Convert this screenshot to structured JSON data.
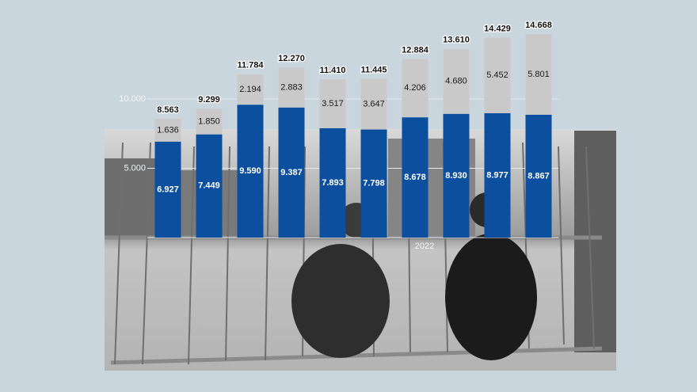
{
  "chart_data": {
    "type": "stacked_bar",
    "categories": [
      null,
      null,
      null,
      null,
      null,
      null,
      null,
      null,
      null,
      null
    ],
    "series": [
      {
        "color": "#0b4f9e",
        "values": [
          6927,
          7449,
          9590,
          9387,
          7893,
          7798,
          8678,
          8930,
          8977,
          8867
        ],
        "value_labels": [
          "6.927",
          "7.449",
          "9.590",
          "9.387",
          "7.893",
          "7.798",
          "8.678",
          "8.930",
          "8.977",
          "8.867"
        ]
      },
      {
        "color": "#c9c9c9",
        "values": [
          1636,
          1850,
          2194,
          2883,
          3517,
          3647,
          4206,
          4680,
          5452,
          5801
        ],
        "value_labels": [
          "1.636",
          "1.850",
          "2.194",
          "2.883",
          "3.517",
          "3.647",
          "4.206",
          "4.680",
          "5.452",
          "5.801"
        ]
      }
    ],
    "totals": {
      "values": [
        8563,
        9299,
        11784,
        12270,
        11410,
        11445,
        12884,
        13610,
        14429,
        14668
      ],
      "value_labels": [
        "8.563",
        "9.299",
        "11.784",
        "12.270",
        "11.410",
        "11.445",
        "12.884",
        "13.610",
        "14.429",
        "14.668"
      ]
    },
    "ylim": [
      0,
      17000
    ],
    "yticks": [
      {
        "value": 5000,
        "label": "5.000"
      },
      {
        "value": 10000,
        "label": "10.000"
      }
    ],
    "grid": true,
    "annotation": "2022"
  }
}
